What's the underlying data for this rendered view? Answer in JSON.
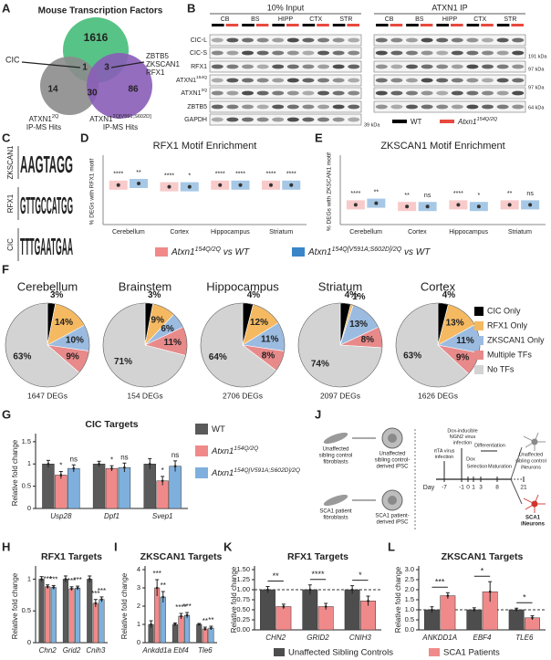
{
  "panel_letters": [
    "A",
    "B",
    "C",
    "D",
    "E",
    "F",
    "G",
    "H",
    "I",
    "J",
    "K",
    "L"
  ],
  "panel_a": {
    "title": "Mouse Transcription Factors",
    "counts": [
      1616,
      1,
      3,
      14,
      30,
      86
    ],
    "left_label": "CIC",
    "right_labels": [
      "ZBTB5",
      "ZKSCAN1",
      "RFX1"
    ],
    "sets": [
      {
        "base": "ATXN1",
        "sup": "2Q",
        "line2": "IP-MS Hits"
      },
      {
        "base": "ATXN1",
        "sup": "2Q[V591;S602D]",
        "line2": "IP-MS Hits"
      }
    ]
  },
  "panel_b": {
    "input_title": "10% Input",
    "ip_title": "ATXN1 IP",
    "regions": [
      "CB",
      "BS",
      "HIPP",
      "CTX",
      "STR"
    ],
    "rows": [
      {
        "base": "CIC-L"
      },
      {
        "base": "CIC-S"
      },
      {
        "base": "RFX1"
      },
      {
        "base": "ATXN1",
        "sup": "154Q"
      },
      {
        "base": "ATXN1",
        "sup": "2Q"
      },
      {
        "base": "ZBTB5"
      },
      {
        "base": "GAPDH"
      }
    ],
    "ip_markers": [
      "191 kDa",
      "97 kDa",
      "97 kDa",
      "64 kDa"
    ],
    "input_marker": "39 kDa",
    "legend": [
      {
        "base": "WT",
        "color": "#000000"
      },
      {
        "base": "Atxn1",
        "sup": "154Q/2Q",
        "color": "#e8493f"
      }
    ]
  },
  "panel_c": {
    "logos": [
      {
        "name": "ZKSCAN1",
        "motif": "AAGTAGG",
        "color": "#2e8b3e"
      },
      {
        "name": "RFX1",
        "motif": "GTTGCCATGG",
        "color": "#c77a1a"
      },
      {
        "name": "CIC",
        "motif": "TTTGAATGAA",
        "color": "#c0392b"
      }
    ]
  },
  "panel_j": {
    "fibroblasts": [
      [
        "Unaffected",
        "sibling control",
        "fibroblasts"
      ],
      [
        "SCA1 patient",
        "fibroblasts"
      ]
    ],
    "ipsc": [
      [
        "Unaffected",
        "sibling control-",
        "derived iPSC"
      ],
      [
        "SCA1 patient-",
        "derived iPSC"
      ]
    ],
    "steps": [
      [
        "rtTA virus",
        "infection"
      ],
      [
        "Dox-inducible",
        "NGN2 virus",
        "infection"
      ],
      [
        "Dox"
      ],
      [
        "Selection"
      ],
      [
        "Differentiation"
      ],
      [
        "Maturation"
      ]
    ],
    "day_label": "Day",
    "days": [
      -7,
      -1,
      0,
      1,
      3,
      8,
      21
    ],
    "neurons": [
      [
        "Unaffected",
        "sibling control",
        "iNeurons"
      ],
      [
        "SCA1",
        "iNeurons"
      ]
    ]
  },
  "chart_data": [
    {
      "type": "strip",
      "title": "RFX1 Motif Enrichment",
      "ylabel": "% DEGs with RFX1 motif",
      "categories": [
        "Cerebellum",
        "Cortex",
        "Hippocampus",
        "Striatum"
      ],
      "ylim": [
        0,
        40
      ],
      "series": [
        {
          "name": "Atxn1",
          "name_sup": "154Q/2Q",
          "name_suffix": " vs WT",
          "color": "#f08a8a",
          "values": [
            24,
            23,
            24,
            24
          ]
        },
        {
          "name": "Atxn1",
          "name_sup": "154Q[V591A;S602D]/2Q",
          "name_suffix": " vs WT",
          "color": "#3a85c8",
          "values": [
            25,
            23,
            24,
            24
          ]
        }
      ],
      "annotations": [
        {
          "category": 0,
          "series": 0,
          "text": "****"
        },
        {
          "category": 0,
          "series": 1,
          "text": "**"
        },
        {
          "category": 1,
          "series": 0,
          "text": "****"
        },
        {
          "category": 1,
          "series": 1,
          "text": "*"
        },
        {
          "category": 2,
          "series": 0,
          "text": "****"
        },
        {
          "category": 2,
          "series": 1,
          "text": "****"
        },
        {
          "category": 3,
          "series": 0,
          "text": "****"
        },
        {
          "category": 3,
          "series": 1,
          "text": "****"
        }
      ]
    },
    {
      "type": "strip",
      "title": "ZKSCAN1 Motif Enrichment",
      "ylabel": "% DEGs with ZKSCAN1 motif",
      "categories": [
        "Cerebellum",
        "Cortex",
        "Hippocampus",
        "Striatum"
      ],
      "ylim": [
        0,
        40
      ],
      "series": [
        {
          "color": "#f08a8a",
          "values": [
            12,
            11,
            12,
            12
          ]
        },
        {
          "color": "#3a85c8",
          "values": [
            13,
            11,
            11,
            12
          ]
        }
      ],
      "annotations": [
        {
          "category": 0,
          "series": 0,
          "text": "****"
        },
        {
          "category": 0,
          "series": 1,
          "text": "**"
        },
        {
          "category": 1,
          "series": 0,
          "text": "**"
        },
        {
          "category": 1,
          "series": 1,
          "text": "ns"
        },
        {
          "category": 2,
          "series": 0,
          "text": "****"
        },
        {
          "category": 2,
          "series": 1,
          "text": "*"
        },
        {
          "category": 3,
          "series": 0,
          "text": "**"
        },
        {
          "category": 3,
          "series": 1,
          "text": "ns"
        }
      ]
    },
    {
      "type": "pie",
      "categories": [
        "CIC Only",
        "RFX1 Only",
        "ZKSCAN1 Only",
        "Multiple TFs",
        "No TFs"
      ],
      "colors": [
        "#000000",
        "#f5b961",
        "#9bbbe0",
        "#e8898a",
        "#d3d3d3"
      ],
      "pies": [
        {
          "title": "Cerebellum",
          "values": [
            3,
            14,
            10,
            9,
            63
          ],
          "value_labels": [
            "3%",
            "14%",
            "10%",
            "9%",
            "63%"
          ],
          "total_label": "1647 DEGs"
        },
        {
          "title": "Brainstem",
          "values": [
            3,
            9,
            6,
            11,
            71
          ],
          "value_labels": [
            "3%",
            "9%",
            "6%",
            "11%",
            "71%"
          ],
          "total_label": "154 DEGs"
        },
        {
          "title": "Hippocampus",
          "values": [
            4,
            12,
            11,
            8,
            64
          ],
          "value_labels": [
            "4%",
            "12%",
            "11%",
            "8%",
            "64%"
          ],
          "total_label": "2706 DEGs"
        },
        {
          "title": "Striatum",
          "values": [
            4,
            1,
            13,
            8,
            74
          ],
          "value_labels": [
            "4%",
            "1%",
            "13%",
            "8%",
            "74%"
          ],
          "total_label": "2097 DEGs"
        },
        {
          "title": "Cortex",
          "values": [
            4,
            13,
            11,
            9,
            63
          ],
          "value_labels": [
            "4%",
            "13%",
            "11%",
            "9%",
            "63%"
          ],
          "total_label": "1626 DEGs"
        }
      ]
    },
    {
      "type": "bar",
      "title": "CIC Targets",
      "ylabel": "Relative fold change",
      "categories": [
        "Usp28",
        "Dpf1",
        "Svep1"
      ],
      "ylim": [
        0,
        1.6
      ],
      "yticks": [
        0,
        0.5,
        1,
        1.5
      ],
      "series": [
        {
          "name": "WT",
          "color": "#5a5a5a",
          "values": [
            1,
            1,
            1
          ],
          "errors": [
            0.08,
            0.06,
            0.12
          ]
        },
        {
          "name": "Atxn1",
          "name_sup": "154Q/2Q",
          "color": "#f08a8a",
          "values": [
            0.75,
            0.9,
            0.62
          ],
          "errors": [
            0.08,
            0.06,
            0.1
          ]
        },
        {
          "name": "Atxn1",
          "name_sup": "154Q[V591A;S602D]/2Q",
          "color": "#7fb0dd",
          "values": [
            0.9,
            0.92,
            0.95
          ],
          "errors": [
            0.08,
            0.1,
            0.12
          ]
        }
      ],
      "annotations": [
        {
          "category": 0,
          "series": 1,
          "text": "*"
        },
        {
          "category": 0,
          "series": 2,
          "text": "ns"
        },
        {
          "category": 1,
          "series": 1,
          "text": "*"
        },
        {
          "category": 1,
          "series": 2,
          "text": "ns"
        },
        {
          "category": 2,
          "series": 1,
          "text": "*"
        },
        {
          "category": 2,
          "series": 2,
          "text": "ns"
        }
      ]
    },
    {
      "type": "bar",
      "title": "RFX1 Targets",
      "ylabel": "Relative fold change",
      "categories": [
        "Chn2",
        "Grid2",
        "Cnih3"
      ],
      "ylim": [
        0,
        1.15
      ],
      "yticks": [
        0,
        0.5,
        1
      ],
      "series": [
        {
          "color": "#5a5a5a",
          "values": [
            1,
            1,
            1
          ],
          "errors": [
            0.04,
            0.05,
            0.05
          ]
        },
        {
          "color": "#f08a8a",
          "values": [
            0.88,
            0.85,
            0.62
          ],
          "errors": [
            0.03,
            0.03,
            0.06
          ]
        },
        {
          "color": "#7fb0dd",
          "values": [
            0.87,
            0.86,
            0.68
          ],
          "errors": [
            0.03,
            0.03,
            0.04
          ]
        }
      ],
      "annotations": [
        {
          "category": 0,
          "series": 1,
          "text": "***"
        },
        {
          "category": 0,
          "series": 2,
          "text": "***"
        },
        {
          "category": 1,
          "series": 1,
          "text": "***"
        },
        {
          "category": 1,
          "series": 2,
          "text": "***"
        },
        {
          "category": 2,
          "series": 1,
          "text": "***"
        },
        {
          "category": 2,
          "series": 2,
          "text": "***"
        }
      ]
    },
    {
      "type": "bar",
      "title": "ZKSCAN1 Targets",
      "ylabel": "Relative fold change",
      "categories": [
        "Ankdd1a",
        "Ebf4",
        "Tle6"
      ],
      "ylim": [
        0,
        4
      ],
      "yticks": [
        0,
        1,
        2,
        3,
        4
      ],
      "series": [
        {
          "color": "#5a5a5a",
          "values": [
            1,
            1,
            1
          ],
          "errors": [
            0.2,
            0.08,
            0.05
          ]
        },
        {
          "color": "#f08a8a",
          "values": [
            3,
            1.45,
            0.75
          ],
          "errors": [
            0.45,
            0.15,
            0.1
          ]
        },
        {
          "color": "#7fb0dd",
          "values": [
            2.5,
            1.5,
            0.8
          ],
          "errors": [
            0.3,
            0.15,
            0.1
          ]
        }
      ],
      "annotations": [
        {
          "category": 0,
          "series": 1,
          "text": "***"
        },
        {
          "category": 0,
          "series": 2,
          "text": "**"
        },
        {
          "category": 1,
          "series": 1,
          "text": "****"
        },
        {
          "category": 1,
          "series": 2,
          "text": "***"
        },
        {
          "category": 2,
          "series": 1,
          "text": "**"
        },
        {
          "category": 2,
          "series": 2,
          "text": "**"
        }
      ]
    },
    {
      "type": "bar",
      "title": "RFX1 Targets",
      "ylabel": "Relative fold change",
      "categories": [
        "CHN2",
        "GRID2",
        "CNIH3"
      ],
      "ylim": [
        0,
        1.5
      ],
      "yticks": [
        {
          "value": 0,
          "label": "0.00"
        },
        0.25,
        {
          "value": 0.5,
          "label": "0.50"
        },
        0.75,
        {
          "value": 1,
          "label": "1.00"
        },
        1.25,
        {
          "value": 1.5,
          "label": "1.50"
        }
      ],
      "reference_line": 1,
      "series": [
        {
          "name": "Unaffected Sibling Controls",
          "color": "#4d4d4d",
          "values": [
            1,
            1,
            1
          ],
          "errors": [
            0.08,
            0.12,
            0.1
          ]
        },
        {
          "name": "SCA1 Patients",
          "color": "#f08a8a",
          "values": [
            0.58,
            0.58,
            0.72
          ],
          "errors": [
            0.06,
            0.08,
            0.12
          ]
        }
      ],
      "annotations": [
        {
          "category": 0,
          "text": "**"
        },
        {
          "category": 1,
          "text": "****"
        },
        {
          "category": 2,
          "text": "*"
        }
      ]
    },
    {
      "type": "bar",
      "title": "ZKSCAN1 Targets",
      "ylabel": "Relative fold change",
      "categories": [
        "ANKDD1A",
        "EBF4",
        "TLE6"
      ],
      "ylim": [
        0,
        3
      ],
      "yticks": [
        {
          "value": 0,
          "label": "0.0"
        },
        0.5,
        {
          "value": 1,
          "label": "1.0"
        },
        1.5,
        {
          "value": 2,
          "label": "2.0"
        },
        2.5,
        {
          "value": 3,
          "label": "3.0"
        }
      ],
      "reference_line": 1,
      "series": [
        {
          "color": "#4d4d4d",
          "values": [
            1,
            1,
            1
          ],
          "errors": [
            0.15,
            0.1,
            0.08
          ]
        },
        {
          "color": "#f08a8a",
          "values": [
            1.7,
            1.9,
            0.6
          ],
          "errors": [
            0.15,
            0.5,
            0.1
          ]
        }
      ],
      "annotations": [
        {
          "category": 0,
          "text": "***"
        },
        {
          "category": 1,
          "text": "*"
        },
        {
          "category": 2,
          "text": "*"
        }
      ]
    }
  ]
}
